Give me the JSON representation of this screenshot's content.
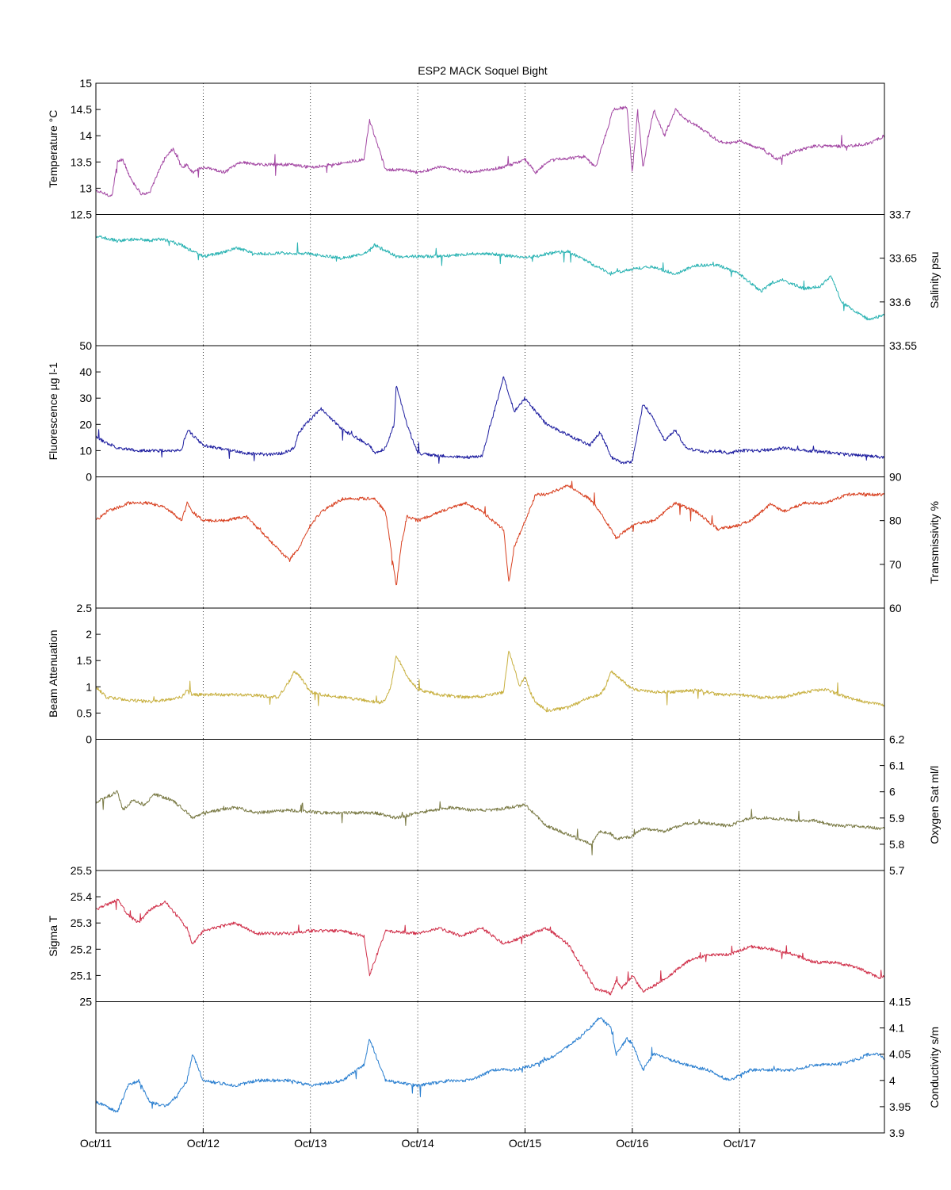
{
  "figure_title": "ESP2 MACK  Soquel Bight",
  "x_tick_labels": [
    "Oct/11",
    "Oct/12",
    "Oct/13",
    "Oct/14",
    "Oct/15",
    "Oct/16",
    "Oct/17"
  ],
  "chart_data": [
    {
      "type": "line",
      "ylabel": "Temperature °C",
      "axis_side": "left",
      "color": "#a347a3",
      "ylim": [
        12.5,
        15
      ],
      "yticks": [
        12.5,
        13,
        13.5,
        14,
        14.5,
        15
      ],
      "ytick_labels": [
        "12.5",
        "13",
        "13.5",
        "14",
        "14.5",
        "15"
      ],
      "x": [
        0,
        0.15,
        0.2,
        0.25,
        0.3,
        0.35,
        0.42,
        0.5,
        0.58,
        0.65,
        0.72,
        0.8,
        0.85,
        0.9,
        1.0,
        1.2,
        1.35,
        1.5,
        1.8,
        2.0,
        2.2,
        2.5,
        2.55,
        2.7,
        2.9,
        3.0,
        3.2,
        3.5,
        3.8,
        4.0,
        4.1,
        4.2,
        4.3,
        4.55,
        4.63,
        4.66,
        4.7,
        4.78,
        4.82,
        4.95,
        5.0,
        5.05,
        5.1,
        5.2,
        5.3,
        5.4,
        5.5,
        5.6,
        5.8,
        5.9,
        6.0,
        6.2,
        6.35,
        6.5,
        6.7,
        6.8,
        7.0,
        7.2,
        7.35
      ],
      "y": [
        12.95,
        12.85,
        13.5,
        13.55,
        13.3,
        13.1,
        12.9,
        12.9,
        13.3,
        13.6,
        13.75,
        13.4,
        13.45,
        13.3,
        13.4,
        13.3,
        13.5,
        13.45,
        13.45,
        13.4,
        13.45,
        13.55,
        14.3,
        13.35,
        13.35,
        13.3,
        13.4,
        13.3,
        13.4,
        13.55,
        13.3,
        13.5,
        13.55,
        13.6,
        13.45,
        13.4,
        13.7,
        14.2,
        14.5,
        14.55,
        13.3,
        14.5,
        13.4,
        14.5,
        14.0,
        14.5,
        14.3,
        14.2,
        13.9,
        13.85,
        13.9,
        13.75,
        13.55,
        13.7,
        13.8,
        13.8,
        13.8,
        13.85,
        14.0
      ]
    },
    {
      "type": "line",
      "ylabel": "Salinity psu",
      "axis_side": "right",
      "color": "#2ab3b3",
      "ylim": [
        33.55,
        33.7
      ],
      "yticks": [
        33.55,
        33.6,
        33.65,
        33.7
      ],
      "ytick_labels": [
        "33.55",
        "33.6",
        "33.65",
        "33.7"
      ],
      "x": [
        0,
        0.2,
        0.4,
        0.5,
        0.6,
        0.7,
        0.8,
        0.9,
        1.0,
        1.2,
        1.3,
        1.5,
        1.8,
        2.0,
        2.3,
        2.5,
        2.6,
        2.8,
        3.0,
        3.2,
        3.5,
        3.7,
        3.9,
        4.0,
        4.2,
        4.4,
        4.6,
        4.8,
        5.0,
        5.2,
        5.4,
        5.6,
        5.8,
        6.0,
        6.2,
        6.3,
        6.4,
        6.6,
        6.75,
        6.85,
        6.95,
        7.1,
        7.2,
        7.35
      ],
      "y": [
        33.675,
        33.67,
        33.672,
        33.67,
        33.672,
        33.669,
        33.665,
        33.658,
        33.652,
        33.657,
        33.662,
        33.655,
        33.656,
        33.655,
        33.65,
        33.655,
        33.665,
        33.652,
        33.652,
        33.652,
        33.655,
        33.655,
        33.652,
        33.65,
        33.655,
        33.658,
        33.645,
        33.632,
        33.638,
        33.64,
        33.632,
        33.642,
        33.642,
        33.632,
        33.612,
        33.622,
        33.625,
        33.615,
        33.618,
        33.63,
        33.6,
        33.588,
        33.58,
        33.585
      ]
    },
    {
      "type": "line",
      "ylabel": "Fluorescence µg l-1",
      "axis_side": "left",
      "color": "#1f1fa0",
      "ylim": [
        0,
        50
      ],
      "yticks": [
        0,
        10,
        20,
        30,
        40,
        50
      ],
      "ytick_labels": [
        "0",
        "10",
        "20",
        "30",
        "40",
        "50"
      ],
      "x": [
        0,
        0.2,
        0.4,
        0.6,
        0.8,
        0.82,
        0.86,
        0.9,
        1.0,
        1.4,
        1.6,
        1.75,
        1.85,
        1.88,
        1.95,
        2.1,
        2.3,
        2.55,
        2.6,
        2.7,
        2.78,
        2.8,
        2.9,
        3.0,
        3.2,
        3.45,
        3.5,
        3.55,
        3.6,
        3.8,
        3.9,
        4.0,
        4.2,
        4.6,
        4.7,
        4.78,
        4.8,
        4.85,
        4.9,
        4.95,
        5.0,
        5.1,
        5.2,
        5.3,
        5.4,
        5.5,
        5.6,
        5.7,
        5.8,
        5.9,
        6.0,
        6.2,
        6.4,
        6.6,
        6.8,
        7.0,
        7.2,
        7.35
      ],
      "y": [
        15,
        11,
        10,
        10,
        10,
        14,
        18,
        16,
        12,
        9,
        8.5,
        9,
        11,
        16,
        20,
        26,
        18,
        12,
        9,
        11,
        20,
        35,
        20,
        9,
        8,
        7.5,
        7.5,
        7.5,
        8,
        38,
        25,
        30,
        20,
        12,
        17,
        10,
        7.5,
        6.5,
        5.5,
        5.5,
        6,
        28,
        22,
        14,
        18,
        11,
        10,
        9.5,
        10,
        9,
        10,
        10,
        11,
        10,
        9.5,
        8.5,
        8,
        7.5
      ]
    },
    {
      "type": "line",
      "ylabel": "Transmissivity %",
      "axis_side": "right",
      "color": "#d84020",
      "ylim": [
        60,
        90
      ],
      "yticks": [
        60,
        70,
        80,
        90
      ],
      "ytick_labels": [
        "60",
        "70",
        "80",
        "90"
      ],
      "x": [
        0,
        0.1,
        0.3,
        0.5,
        0.65,
        0.8,
        0.85,
        0.9,
        1.0,
        1.2,
        1.4,
        1.6,
        1.8,
        1.9,
        2.0,
        2.1,
        2.3,
        2.6,
        2.7,
        2.8,
        2.85,
        2.9,
        3.0,
        3.2,
        3.45,
        3.6,
        3.8,
        3.85,
        3.9,
        4.0,
        4.05,
        4.1,
        4.2,
        4.4,
        4.6,
        4.7,
        4.85,
        5.0,
        5.2,
        5.4,
        5.6,
        5.65,
        5.7,
        5.8,
        6.0,
        6.1,
        6.3,
        6.4,
        6.6,
        6.8,
        7.0,
        7.2,
        7.35
      ],
      "y": [
        80,
        82,
        84,
        84,
        83,
        80,
        84,
        82,
        80,
        80,
        81,
        76,
        71,
        74,
        79,
        82,
        85,
        85,
        82,
        65,
        75,
        81,
        80,
        82,
        84,
        82,
        78,
        66,
        74,
        80,
        83,
        86,
        86,
        88,
        85,
        82,
        76,
        79,
        80,
        84,
        82,
        81,
        80,
        78,
        79,
        80,
        84,
        82,
        84,
        84,
        86,
        86,
        86
      ]
    },
    {
      "type": "line",
      "ylabel": "Beam Attenuation",
      "axis_side": "left",
      "color": "#c8b040",
      "ylim": [
        0,
        2.5
      ],
      "yticks": [
        0,
        0.5,
        1,
        1.5,
        2,
        2.5
      ],
      "ytick_labels": [
        "0",
        "0.5",
        "1",
        "1.5",
        "2",
        "2.5"
      ],
      "x": [
        0,
        0.1,
        0.3,
        0.5,
        0.65,
        0.8,
        0.85,
        0.9,
        1.0,
        1.4,
        1.7,
        1.8,
        1.85,
        1.9,
        2.0,
        2.1,
        2.3,
        2.65,
        2.7,
        2.75,
        2.8,
        2.9,
        3.0,
        3.2,
        3.45,
        3.6,
        3.8,
        3.85,
        3.95,
        4.0,
        4.05,
        4.1,
        4.2,
        4.4,
        4.6,
        4.7,
        4.75,
        4.8,
        5.0,
        5.2,
        5.4,
        5.6,
        5.8,
        6.0,
        6.2,
        6.4,
        6.6,
        6.8,
        7.0,
        7.2,
        7.35
      ],
      "y": [
        1.0,
        0.8,
        0.75,
        0.72,
        0.75,
        0.8,
        0.95,
        0.85,
        0.85,
        0.85,
        0.8,
        1.1,
        1.3,
        1.2,
        0.9,
        0.85,
        0.8,
        0.7,
        0.75,
        1.0,
        1.6,
        1.2,
        0.95,
        0.85,
        0.8,
        0.82,
        0.9,
        1.7,
        1.0,
        1.2,
        0.9,
        0.7,
        0.55,
        0.6,
        0.8,
        0.85,
        1.0,
        1.3,
        0.95,
        0.9,
        0.9,
        0.95,
        0.85,
        0.85,
        0.8,
        0.8,
        0.9,
        0.95,
        0.8,
        0.7,
        0.65
      ]
    },
    {
      "type": "line",
      "ylabel": "Oxygen Sat ml/l",
      "axis_side": "right",
      "color": "#7a7a45",
      "ylim": [
        5.7,
        6.2
      ],
      "yticks": [
        5.7,
        5.8,
        5.9,
        6.0,
        6.1,
        6.2
      ],
      "ytick_labels": [
        "5.7",
        "5.8",
        "5.9",
        "6",
        "6.1",
        "6.2"
      ],
      "x": [
        0,
        0.2,
        0.25,
        0.35,
        0.45,
        0.55,
        0.7,
        0.8,
        0.9,
        1.0,
        1.3,
        1.5,
        1.8,
        2.1,
        2.4,
        2.6,
        2.8,
        3.0,
        3.3,
        3.5,
        3.7,
        4.0,
        4.2,
        4.5,
        4.62,
        4.7,
        4.8,
        4.85,
        5.0,
        5.1,
        5.3,
        5.5,
        5.7,
        5.9,
        6.1,
        6.3,
        6.5,
        6.7,
        6.9,
        7.1,
        7.3,
        7.35
      ],
      "y": [
        5.96,
        6.0,
        5.93,
        5.97,
        5.95,
        5.99,
        5.97,
        5.94,
        5.9,
        5.92,
        5.94,
        5.92,
        5.93,
        5.92,
        5.92,
        5.92,
        5.9,
        5.92,
        5.94,
        5.93,
        5.93,
        5.95,
        5.87,
        5.82,
        5.8,
        5.85,
        5.84,
        5.82,
        5.83,
        5.86,
        5.85,
        5.88,
        5.88,
        5.87,
        5.9,
        5.9,
        5.89,
        5.89,
        5.87,
        5.87,
        5.86,
        5.86
      ]
    },
    {
      "type": "line",
      "ylabel": "Sigma T",
      "axis_side": "left",
      "color": "#d0304a",
      "ylim": [
        25,
        25.5
      ],
      "yticks": [
        25.0,
        25.1,
        25.2,
        25.3,
        25.4,
        25.5
      ],
      "ytick_labels": [
        "25",
        "25.1",
        "25.2",
        "25.3",
        "25.4",
        "25.5"
      ],
      "x": [
        0,
        0.2,
        0.3,
        0.4,
        0.5,
        0.65,
        0.75,
        0.85,
        0.9,
        1.0,
        1.3,
        1.5,
        1.8,
        2.0,
        2.3,
        2.5,
        2.55,
        2.7,
        3.0,
        3.2,
        3.4,
        3.6,
        3.8,
        4.0,
        4.2,
        4.4,
        4.55,
        4.65,
        4.75,
        4.8,
        4.85,
        4.9,
        5.0,
        5.1,
        5.2,
        5.35,
        5.5,
        5.7,
        5.9,
        6.1,
        6.3,
        6.5,
        6.7,
        6.9,
        7.1,
        7.2,
        7.3,
        7.35
      ],
      "y": [
        25.35,
        25.39,
        25.33,
        25.3,
        25.35,
        25.38,
        25.33,
        25.28,
        25.22,
        25.27,
        25.3,
        25.26,
        25.26,
        25.27,
        25.27,
        25.25,
        25.1,
        25.27,
        25.26,
        25.28,
        25.25,
        25.28,
        25.22,
        25.25,
        25.28,
        25.22,
        25.12,
        25.05,
        25.04,
        25.03,
        25.08,
        25.05,
        25.1,
        25.04,
        25.06,
        25.1,
        25.15,
        25.18,
        25.18,
        25.21,
        25.2,
        25.18,
        25.15,
        25.15,
        25.13,
        25.11,
        25.09,
        25.1
      ]
    },
    {
      "type": "line",
      "ylabel": "Conductivity s/m",
      "axis_side": "right",
      "color": "#2a7fd0",
      "ylim": [
        3.9,
        4.15
      ],
      "yticks": [
        3.9,
        3.95,
        4.0,
        4.05,
        4.1,
        4.15
      ],
      "ytick_labels": [
        "3.9",
        "3.95",
        "4",
        "4.05",
        "4.1",
        "4.15"
      ],
      "x": [
        0,
        0.2,
        0.3,
        0.4,
        0.5,
        0.65,
        0.75,
        0.85,
        0.9,
        1.0,
        1.3,
        1.5,
        1.8,
        2.0,
        2.3,
        2.5,
        2.55,
        2.7,
        3.0,
        3.3,
        3.5,
        3.7,
        3.9,
        4.1,
        4.3,
        4.5,
        4.6,
        4.7,
        4.8,
        4.85,
        4.95,
        5.0,
        5.1,
        5.2,
        5.35,
        5.5,
        5.7,
        5.9,
        6.1,
        6.3,
        6.5,
        6.7,
        6.9,
        7.1,
        7.2,
        7.3,
        7.35
      ],
      "y": [
        3.96,
        3.94,
        3.99,
        4.0,
        3.96,
        3.95,
        3.97,
        4.0,
        4.05,
        4.0,
        3.99,
        4.0,
        4.0,
        3.99,
        4.0,
        4.03,
        4.08,
        4.0,
        3.99,
        4.0,
        4.0,
        4.02,
        4.02,
        4.03,
        4.05,
        4.08,
        4.1,
        4.12,
        4.1,
        4.05,
        4.08,
        4.07,
        4.02,
        4.05,
        4.04,
        4.03,
        4.02,
        4.0,
        4.02,
        4.02,
        4.02,
        4.03,
        4.03,
        4.04,
        4.05,
        4.05,
        4.04
      ]
    }
  ]
}
